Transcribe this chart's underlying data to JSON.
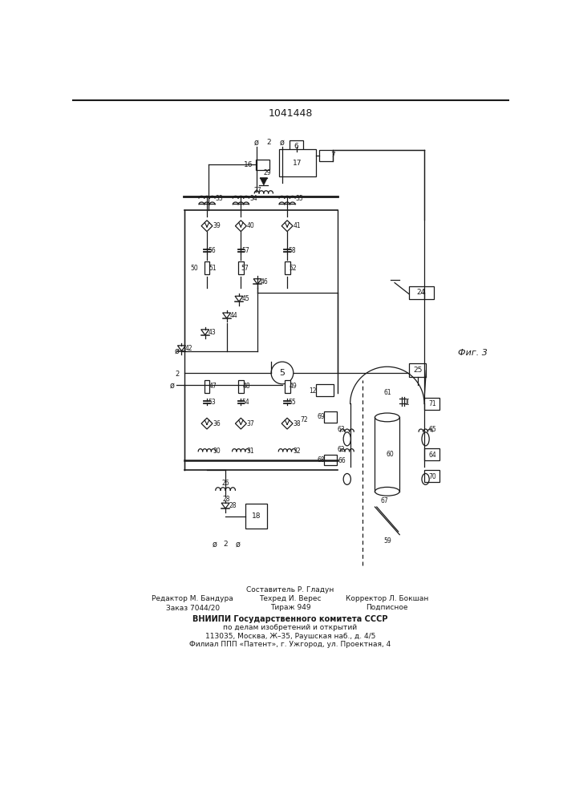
{
  "title": "1041448",
  "fig_label": "Фиг. 3",
  "footer_line1": "Составитель Р. Гладун",
  "footer_line2_left": "Редактор М. Бандура",
  "footer_line2_mid": "Техред И. Верес",
  "footer_line2_right": "Корректор Л. Бокшан",
  "footer_line3_left": "Заказ 7044/20",
  "footer_line3_mid": "Тираж 949",
  "footer_line3_right": "Подписное",
  "footer_bold": "ВНИИПИ Государственного комитета СССР",
  "footer_line4": "по делам изобретений и открытий",
  "footer_line5": "113035, Москва, Ж–35, Раушская наб., д. 4/5",
  "footer_line6": "Филиал ППП «Патент», г. Ужгород, ул. Проектная, 4",
  "bg_color": "#ffffff",
  "line_color": "#1a1a1a"
}
